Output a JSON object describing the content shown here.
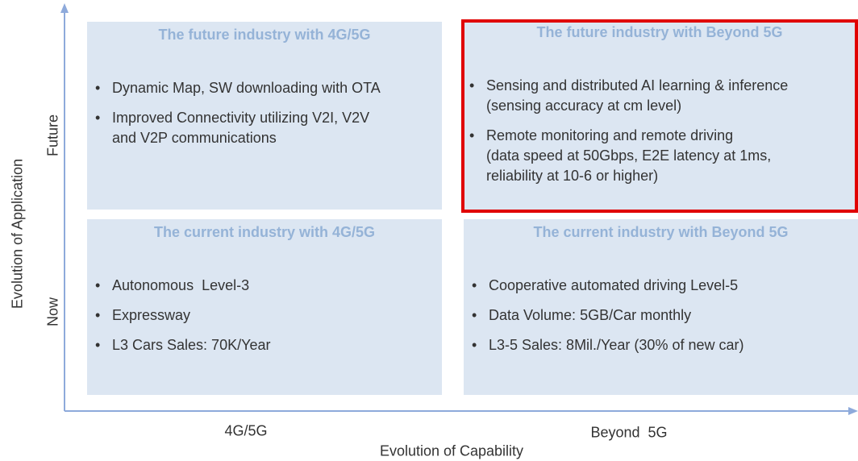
{
  "axes": {
    "y_label": "Evolution of Application",
    "y_future": "Future",
    "y_now": "Now",
    "x_label": "Evolution of Capability",
    "x_left": "4G/5G",
    "x_right": "Beyond  5G"
  },
  "quadrants": [
    {
      "title": "The future industry with 4G/5G",
      "bullets": [
        [
          "Dynamic Map, SW downloading with OTA"
        ],
        [
          "Improved Connectivity utilizing V2I, V2V",
          "and V2P communications"
        ]
      ]
    },
    {
      "title": "The future industry with Beyond 5G",
      "bullets": [
        [
          "Sensing and distributed AI learning & inference",
          "(sensing accuracy at cm level)"
        ],
        [
          "Remote monitoring and remote driving",
          "(data speed at 50Gbps, E2E latency at 1ms,",
          "reliability at 10-6 or higher)"
        ]
      ]
    },
    {
      "title": "The current industry with 4G/5G",
      "bullets": [
        [
          "Autonomous  Level-3"
        ],
        [
          "Expressway"
        ],
        [
          "L3 Cars Sales: 70K/Year"
        ]
      ]
    },
    {
      "title": "The current industry with Beyond 5G",
      "bullets": [
        [
          "Cooperative automated driving Level-5"
        ],
        [
          "Data Volume: 5GB/Car monthly"
        ],
        [
          "L3-5 Sales: 8Mil./Year (30% of new car)"
        ]
      ]
    }
  ]
}
